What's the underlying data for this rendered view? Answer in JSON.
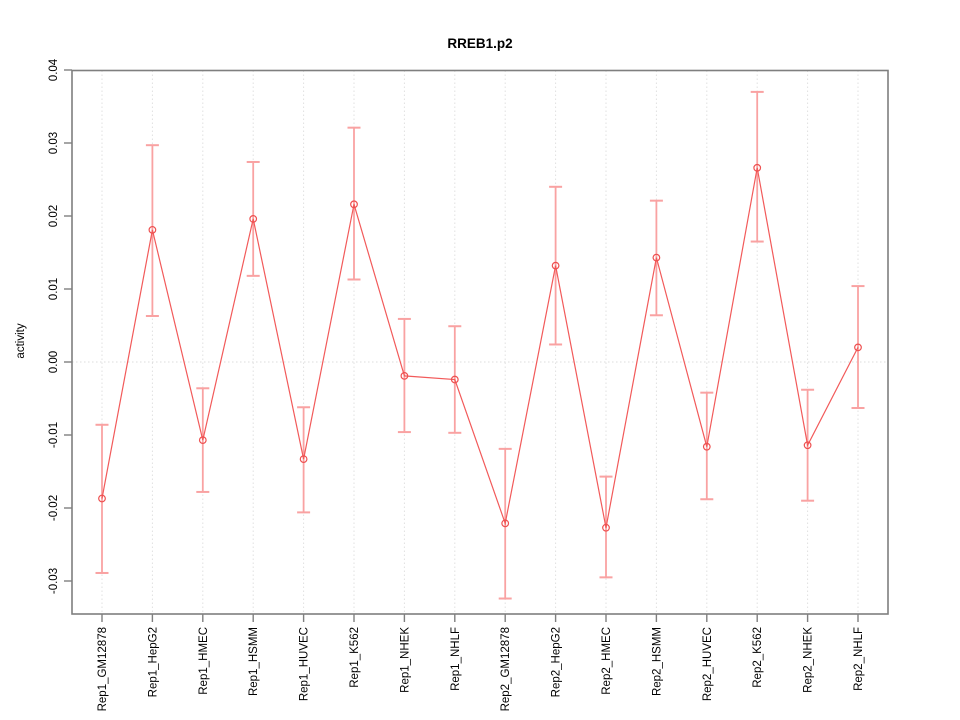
{
  "title": "RREB1.p2",
  "chart_data": {
    "type": "line",
    "title": "RREB1.p2",
    "xlabel": "",
    "ylabel": "activity",
    "categories": [
      "Rep1_GM12878",
      "Rep1_HepG2",
      "Rep1_HMEC",
      "Rep1_HSMM",
      "Rep1_HUVEC",
      "Rep1_K562",
      "Rep1_NHEK",
      "Rep1_NHLF",
      "Rep2_GM12878",
      "Rep2_HepG2",
      "Rep2_HMEC",
      "Rep2_HSMM",
      "Rep2_HUVEC",
      "Rep2_K562",
      "Rep2_NHEK",
      "Rep2_NHLF"
    ],
    "series": [
      {
        "name": "activity",
        "values": [
          -0.0187,
          0.0181,
          -0.0107,
          0.0196,
          -0.0133,
          0.0216,
          -0.0019,
          -0.0024,
          -0.0221,
          0.0132,
          -0.0227,
          0.0143,
          -0.0116,
          0.0266,
          -0.0114,
          0.002
        ],
        "lower": [
          -0.0289,
          0.0063,
          -0.0178,
          0.0118,
          -0.0206,
          0.0113,
          -0.0096,
          -0.0097,
          -0.0324,
          0.0024,
          -0.0295,
          0.0064,
          -0.0188,
          0.0165,
          -0.019,
          -0.0063
        ],
        "upper": [
          -0.0086,
          0.0297,
          -0.0036,
          0.0274,
          -0.0062,
          0.0321,
          0.0059,
          0.0049,
          -0.0119,
          0.024,
          -0.0157,
          0.0221,
          -0.0042,
          0.037,
          -0.0038,
          0.0104
        ]
      }
    ],
    "ylim": [
      -0.0344,
      0.0402
    ],
    "yticks": [
      0.04,
      0.03,
      0.02,
      0.01,
      0.0,
      -0.01,
      -0.02,
      -0.03
    ],
    "zero_line": 0,
    "grid": "vertical-dotted plus dotted zero line",
    "legend": "none",
    "point_style": "open-circle",
    "colors": {
      "line": "#f25a5a",
      "point": "#ee5050",
      "error_bar": "#f9a2a2",
      "grid": "#e0e0e0",
      "axis": "#7f7f7f",
      "text": "#000000",
      "background": "#ffffff"
    }
  }
}
